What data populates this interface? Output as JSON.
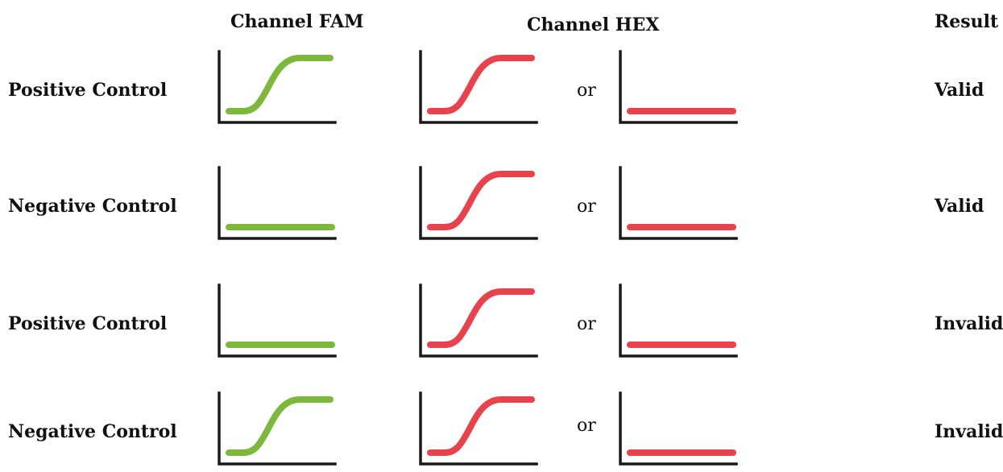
{
  "headers": {
    "fam": "Channel FAM",
    "hex": "Channel HEX",
    "result": "Result"
  },
  "colors": {
    "fam": "#7cb83b",
    "hex": "#e8424c",
    "axis": "#1a1a1a"
  },
  "or_label": "or",
  "rows": [
    {
      "label": "Positive Control",
      "fam": "sigmoid",
      "hex_a": "sigmoid",
      "hex_b": "flat",
      "result": "Valid"
    },
    {
      "label": "Negative Control",
      "fam": "flat",
      "hex_a": "sigmoid",
      "hex_b": "flat",
      "result": "Valid"
    },
    {
      "label": "Positive Control",
      "fam": "flat",
      "hex_a": "sigmoid",
      "hex_b": "flat",
      "result": "Invalid"
    },
    {
      "label": "Negative Control",
      "fam": "sigmoid",
      "hex_a": "sigmoid",
      "hex_b": "flat",
      "result": "Invalid"
    }
  ]
}
